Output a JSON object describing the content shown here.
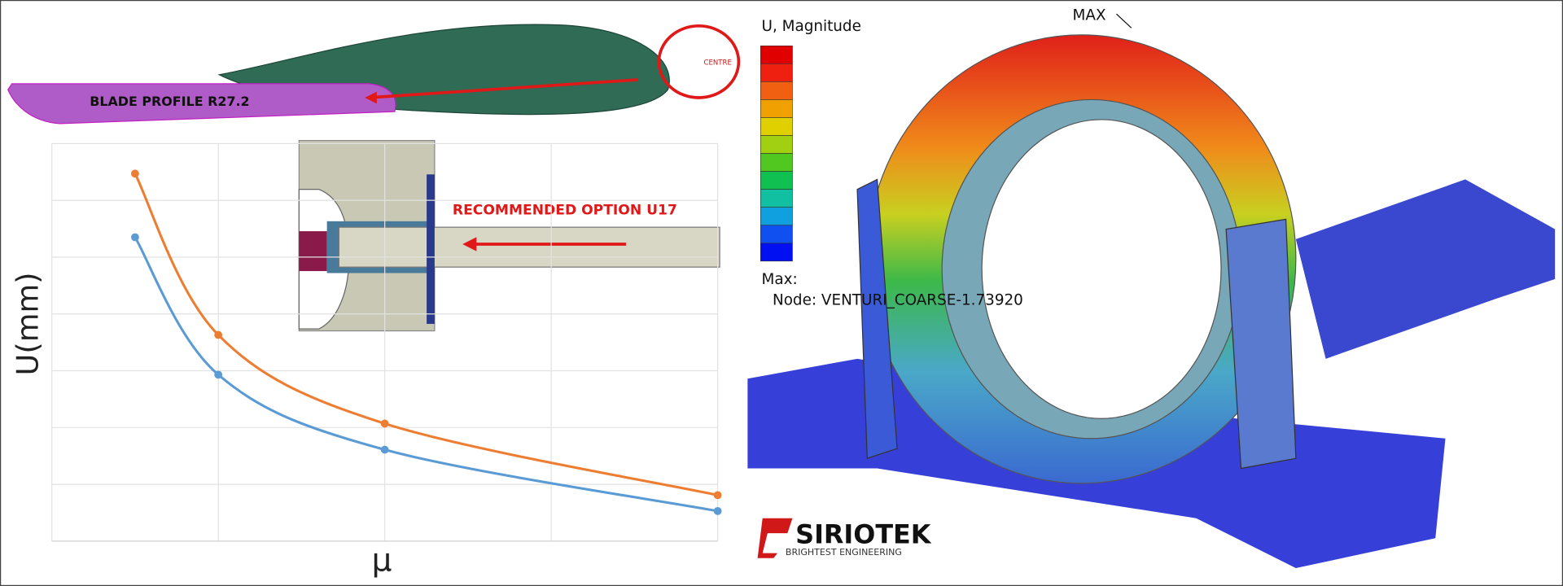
{
  "chart_data": {
    "type": "line",
    "xlabel": "μ",
    "ylabel": "U(mm)",
    "x": [
      0.5,
      1,
      2,
      4
    ],
    "series": [
      {
        "color": "#ed7d31",
        "values": [
          6.47,
          3.63,
          2.07,
          0.81
        ]
      },
      {
        "color": "#5b9bd5",
        "values": [
          5.35,
          2.93,
          1.61,
          0.53
        ]
      }
    ],
    "xlim": [
      0,
      4
    ],
    "ylim": [
      0,
      7
    ],
    "grid": true
  },
  "figures": {
    "blade_label": "BLADE PROFILE  R27.2",
    "centre_label": "CENTRE",
    "inset_label": "RECOMMENDED OPTION U17",
    "legend_title": "U, Magnitude",
    "max_label": "Max:",
    "node_label": "Node: VENTURI_COARSE-1.73920",
    "max_marker": "MAX",
    "logo": "SIRIOTEK",
    "logo_tagline": "BRIGHTEST ENGINEERING"
  }
}
